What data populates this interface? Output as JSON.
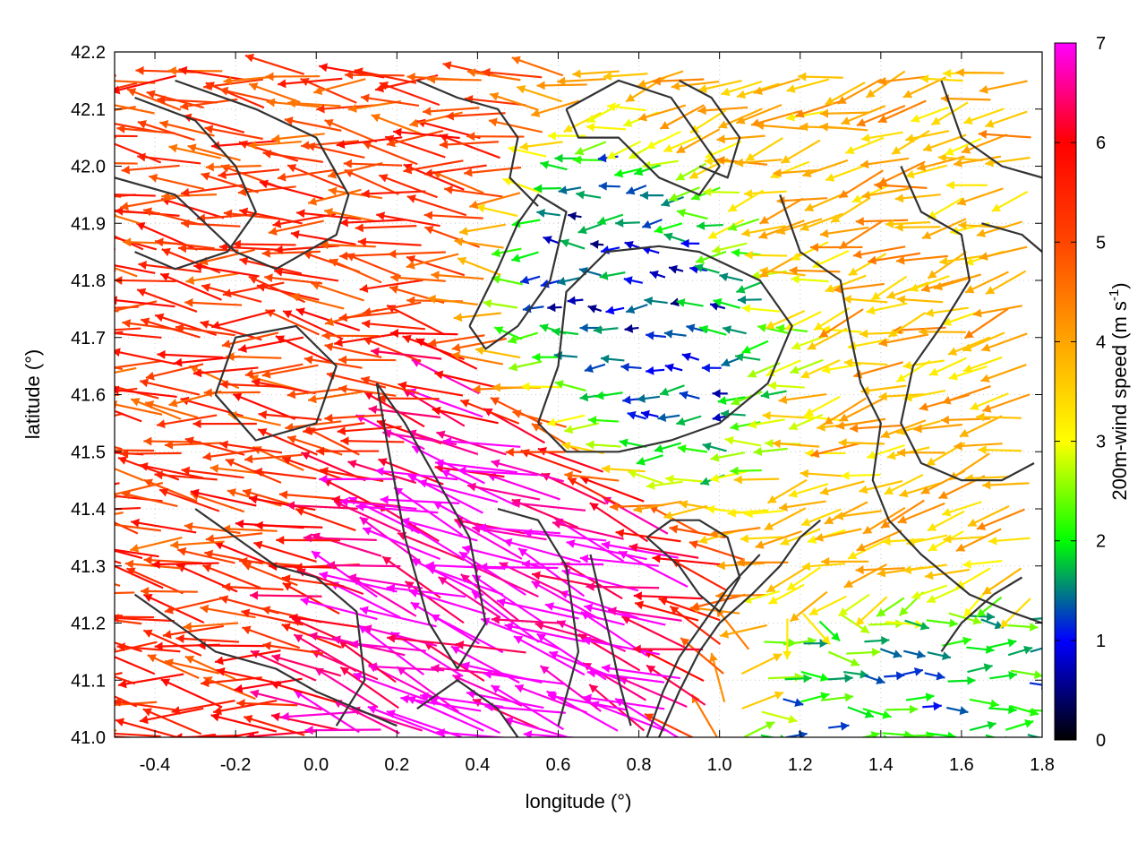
{
  "chart_data": {
    "type": "vector-field",
    "title": "",
    "xlabel": "longitude (°)",
    "ylabel": "latitude (°)",
    "xlim": [
      -0.5,
      1.8
    ],
    "ylim": [
      41.0,
      42.2
    ],
    "xticks": [
      "-0.4",
      "-0.2",
      "0.0",
      "0.2",
      "0.4",
      "0.6",
      "0.8",
      "1.0",
      "1.2",
      "1.4",
      "1.6",
      "1.8"
    ],
    "xtick_values": [
      -0.4,
      -0.2,
      0.0,
      0.2,
      0.4,
      0.6,
      0.8,
      1.0,
      1.2,
      1.4,
      1.6,
      1.8
    ],
    "yticks": [
      "41.0",
      "41.1",
      "41.2",
      "41.3",
      "41.4",
      "41.5",
      "41.6",
      "41.7",
      "41.8",
      "41.9",
      "42.0",
      "42.1",
      "42.2"
    ],
    "ytick_values": [
      41.0,
      41.1,
      41.2,
      41.3,
      41.4,
      41.5,
      41.6,
      41.7,
      41.8,
      41.9,
      42.0,
      42.1,
      42.2
    ],
    "grid": true,
    "colorbar": {
      "label_main": "200m-wind speed (m s",
      "label_sup": "-1",
      "label_close": ")",
      "range": [
        0,
        7
      ],
      "ticks": [
        "0",
        "1",
        "2",
        "3",
        "4",
        "5",
        "6",
        "7"
      ],
      "tick_values": [
        0,
        1,
        2,
        3,
        4,
        5,
        6,
        7
      ],
      "palette": [
        "#000000",
        "#0000ff",
        "#00ff00",
        "#ffff00",
        "#ffa500",
        "#ff4500",
        "#ff0000",
        "#ff00ff"
      ]
    },
    "wind_field": {
      "grid_lon_start": -0.49,
      "grid_lon_step": 0.05,
      "grid_lat_start": 41.005,
      "grid_lat_step": 0.05,
      "regions": [
        {
          "area": "west",
          "lon_range": [
            -0.5,
            0.1
          ],
          "lat_range": [
            41.0,
            42.2
          ],
          "speed": 5.2,
          "direction_deg": 175
        },
        {
          "area": "south-central core",
          "lon_range": [
            0.1,
            0.75
          ],
          "lat_range": [
            41.0,
            41.45
          ],
          "speed": 7.0,
          "direction_deg": 160
        },
        {
          "area": "center calm",
          "lon_range": [
            0.75,
            1.1
          ],
          "lat_range": [
            41.55,
            41.8
          ],
          "speed": 1.0,
          "direction_deg": 180
        },
        {
          "area": "east",
          "lon_range": [
            1.2,
            1.8
          ],
          "lat_range": [
            41.3,
            42.2
          ],
          "speed": 3.8,
          "direction_deg": 195
        },
        {
          "area": "southeast",
          "lon_range": [
            1.3,
            1.8
          ],
          "lat_range": [
            41.0,
            41.15
          ],
          "speed": 1.6,
          "direction_deg": 0
        }
      ]
    },
    "contour_lines": [
      [
        [
          -0.5,
          41.98
        ],
        [
          -0.35,
          41.95
        ],
        [
          -0.2,
          41.85
        ],
        [
          -0.1,
          41.82
        ],
        [
          0.05,
          41.88
        ],
        [
          0.08,
          41.95
        ],
        [
          0.0,
          42.05
        ],
        [
          -0.15,
          42.1
        ],
        [
          -0.35,
          42.15
        ]
      ],
      [
        [
          -0.25,
          41.6
        ],
        [
          -0.2,
          41.7
        ],
        [
          -0.05,
          41.72
        ],
        [
          0.05,
          41.65
        ],
        [
          0.0,
          41.55
        ],
        [
          -0.15,
          41.52
        ],
        [
          -0.25,
          41.6
        ]
      ],
      [
        [
          0.15,
          41.62
        ],
        [
          0.22,
          41.55
        ],
        [
          0.3,
          41.45
        ],
        [
          0.38,
          41.35
        ],
        [
          0.42,
          41.2
        ],
        [
          0.35,
          41.12
        ],
        [
          0.28,
          41.2
        ],
        [
          0.22,
          41.35
        ],
        [
          0.18,
          41.5
        ],
        [
          0.15,
          41.62
        ]
      ],
      [
        [
          0.45,
          41.4
        ],
        [
          0.55,
          41.38
        ],
        [
          0.62,
          41.3
        ],
        [
          0.65,
          41.15
        ],
        [
          0.6,
          41.02
        ]
      ],
      [
        [
          0.68,
          41.32
        ],
        [
          0.72,
          41.2
        ],
        [
          0.75,
          41.1
        ],
        [
          0.78,
          41.02
        ]
      ],
      [
        [
          0.55,
          41.55
        ],
        [
          0.6,
          41.65
        ],
        [
          0.62,
          41.78
        ],
        [
          0.72,
          41.85
        ],
        [
          0.85,
          41.86
        ],
        [
          0.95,
          41.85
        ],
        [
          1.1,
          41.8
        ],
        [
          1.18,
          41.72
        ],
        [
          1.12,
          41.62
        ],
        [
          1.0,
          41.55
        ],
        [
          0.88,
          41.52
        ],
        [
          0.75,
          41.5
        ],
        [
          0.62,
          41.5
        ],
        [
          0.55,
          41.55
        ]
      ],
      [
        [
          0.38,
          41.72
        ],
        [
          0.45,
          41.82
        ],
        [
          0.5,
          41.9
        ],
        [
          0.55,
          41.95
        ],
        [
          0.62,
          41.92
        ],
        [
          0.58,
          41.8
        ],
        [
          0.5,
          41.72
        ],
        [
          0.42,
          41.68
        ],
        [
          0.38,
          41.72
        ]
      ],
      [
        [
          0.25,
          42.15
        ],
        [
          0.35,
          42.12
        ],
        [
          0.45,
          42.1
        ],
        [
          0.5,
          42.05
        ],
        [
          0.48,
          41.98
        ],
        [
          0.55,
          41.93
        ]
      ],
      [
        [
          0.62,
          42.1
        ],
        [
          0.75,
          42.15
        ],
        [
          0.88,
          42.12
        ],
        [
          0.95,
          42.05
        ],
        [
          1.0,
          42.0
        ],
        [
          0.95,
          41.95
        ],
        [
          0.85,
          41.98
        ],
        [
          0.75,
          42.05
        ],
        [
          0.65,
          42.05
        ],
        [
          0.62,
          42.1
        ]
      ],
      [
        [
          0.9,
          42.15
        ],
        [
          0.98,
          42.12
        ],
        [
          1.05,
          42.05
        ],
        [
          1.02,
          41.98
        ],
        [
          0.95,
          42.0
        ]
      ],
      [
        [
          1.15,
          41.95
        ],
        [
          1.2,
          41.85
        ],
        [
          1.3,
          41.8
        ],
        [
          1.32,
          41.72
        ],
        [
          1.35,
          41.62
        ],
        [
          1.4,
          41.55
        ],
        [
          1.38,
          41.45
        ],
        [
          1.42,
          41.38
        ],
        [
          1.5,
          41.32
        ],
        [
          1.62,
          41.25
        ],
        [
          1.72,
          41.22
        ],
        [
          1.8,
          41.2
        ]
      ],
      [
        [
          1.45,
          42.0
        ],
        [
          1.5,
          41.92
        ],
        [
          1.6,
          41.88
        ],
        [
          1.62,
          41.8
        ],
        [
          1.55,
          41.72
        ],
        [
          1.48,
          41.65
        ],
        [
          1.45,
          41.55
        ],
        [
          1.5,
          41.48
        ],
        [
          1.6,
          41.45
        ],
        [
          1.7,
          41.45
        ],
        [
          1.78,
          41.48
        ]
      ],
      [
        [
          0.82,
          41.35
        ],
        [
          0.9,
          41.3
        ],
        [
          0.95,
          41.25
        ],
        [
          1.0,
          41.22
        ],
        [
          1.05,
          41.28
        ],
        [
          1.02,
          41.35
        ],
        [
          0.95,
          41.38
        ],
        [
          0.88,
          41.38
        ],
        [
          0.82,
          41.35
        ]
      ],
      [
        [
          0.85,
          41.0
        ],
        [
          0.9,
          41.08
        ],
        [
          0.95,
          41.15
        ],
        [
          1.0,
          41.2
        ],
        [
          1.08,
          41.25
        ],
        [
          1.15,
          41.3
        ],
        [
          1.2,
          41.35
        ],
        [
          1.25,
          41.38
        ]
      ],
      [
        [
          0.82,
          41.0
        ],
        [
          0.86,
          41.08
        ],
        [
          0.9,
          41.14
        ],
        [
          0.96,
          41.2
        ],
        [
          1.02,
          41.26
        ],
        [
          1.1,
          41.32
        ]
      ],
      [
        [
          -0.45,
          41.25
        ],
        [
          -0.35,
          41.2
        ],
        [
          -0.25,
          41.15
        ],
        [
          -0.1,
          41.12
        ],
        [
          0.0,
          41.08
        ],
        [
          0.1,
          41.05
        ],
        [
          0.2,
          41.02
        ]
      ],
      [
        [
          -0.3,
          41.4
        ],
        [
          -0.2,
          41.35
        ],
        [
          -0.1,
          41.3
        ],
        [
          0.0,
          41.28
        ],
        [
          0.1,
          41.22
        ],
        [
          0.12,
          41.1
        ],
        [
          0.05,
          41.02
        ]
      ],
      [
        [
          -0.45,
          42.12
        ],
        [
          -0.3,
          42.08
        ],
        [
          -0.2,
          42.0
        ],
        [
          -0.15,
          41.92
        ],
        [
          -0.22,
          41.85
        ],
        [
          -0.35,
          41.82
        ],
        [
          -0.45,
          41.85
        ]
      ],
      [
        [
          1.55,
          42.15
        ],
        [
          1.6,
          42.05
        ],
        [
          1.7,
          42.0
        ],
        [
          1.8,
          41.98
        ]
      ],
      [
        [
          1.65,
          41.9
        ],
        [
          1.75,
          41.88
        ],
        [
          1.8,
          41.85
        ]
      ],
      [
        [
          0.25,
          41.05
        ],
        [
          0.35,
          41.1
        ],
        [
          0.45,
          41.05
        ],
        [
          0.5,
          41.0
        ]
      ],
      [
        [
          1.55,
          41.15
        ],
        [
          1.6,
          41.2
        ],
        [
          1.68,
          41.25
        ],
        [
          1.75,
          41.28
        ]
      ]
    ]
  }
}
